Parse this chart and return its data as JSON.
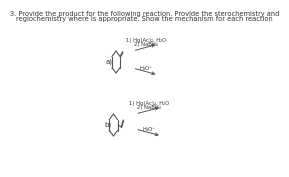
{
  "title_line1": "3. Provide the product for the following reaction. Provide the sterochemistry and",
  "title_line2": "regiochemistry where is appropriate. Show the mechanism for each reaction",
  "title_fontsize": 4.8,
  "label_a": "a)",
  "label_b": "b)",
  "rxn_1_line1": "1) Hg(Ac)₂, H₂O",
  "rxn_1_line2": "2) NaBH₄",
  "rxn_2_label": "H₃O⁺",
  "text_color": "#333333",
  "bg_color": "#ffffff",
  "line_color": "#555555",
  "arrow_color": "#555555",
  "mol_lw": 0.8,
  "arrow_lw": 0.7
}
